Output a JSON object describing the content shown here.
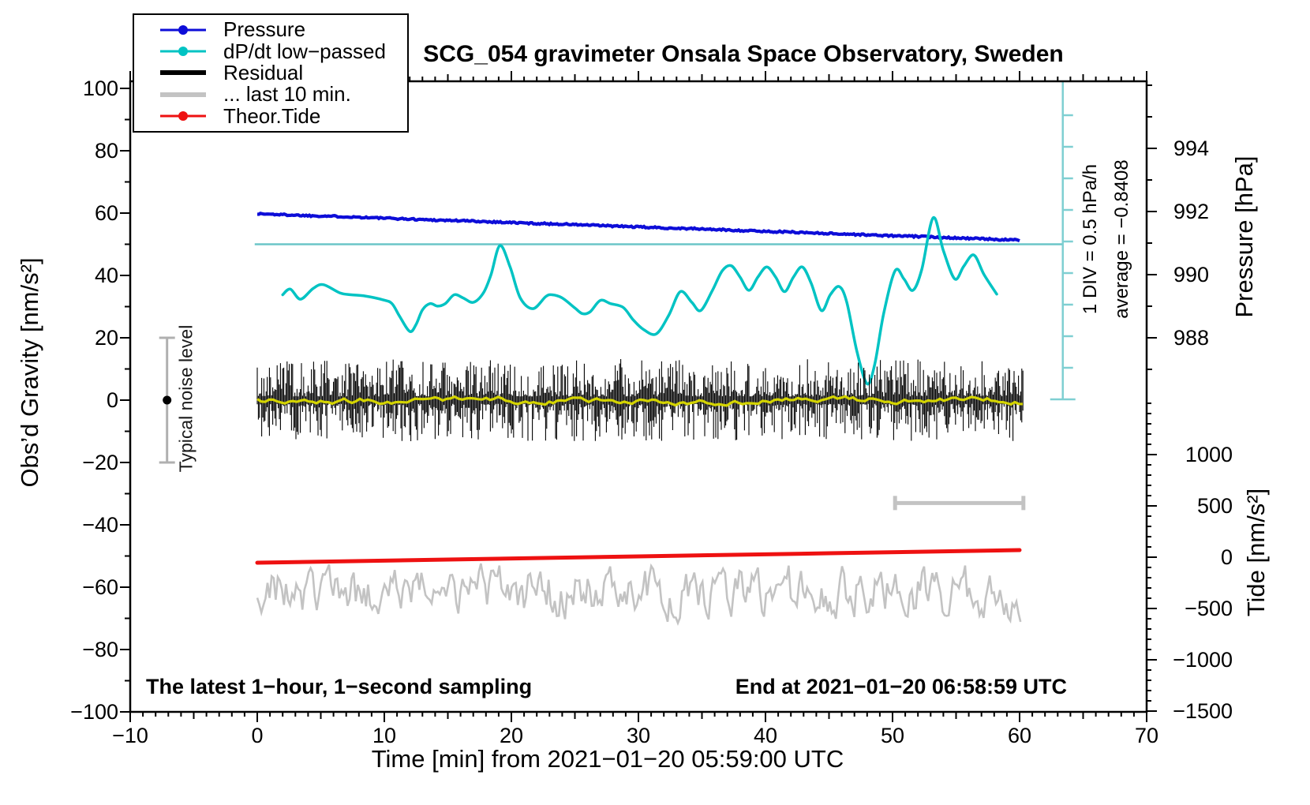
{
  "title": "SCG_054 gravimeter Onsala Space Observatory, Sweden",
  "legend": {
    "items": [
      {
        "label": "Pressure",
        "color": "#0d0dd8",
        "style": "line-dot"
      },
      {
        "label": "dP/dt low−passed",
        "color": "#00c3c3",
        "style": "line-dot"
      },
      {
        "label": "Residual",
        "color": "#000000",
        "style": "thick-line"
      },
      {
        "label": "... last 10 min.",
        "color": "#c3c3c3",
        "style": "thick-line"
      },
      {
        "label": "Theor.Tide",
        "color": "#ee1111",
        "style": "line-dot"
      }
    ]
  },
  "chart_data": {
    "type": "line",
    "axes": {
      "x": {
        "label": "Time [min] from 2021−01−20 05:59:00 UTC",
        "range": [
          -10,
          70
        ],
        "major_step": 10,
        "medium_step": 5,
        "minor_step": 1,
        "tick_values": [
          -10,
          0,
          10,
          20,
          30,
          40,
          50,
          60,
          70
        ],
        "tick_labels": [
          "−10",
          "0",
          "10",
          "20",
          "30",
          "40",
          "50",
          "60",
          "70"
        ]
      },
      "y_gravity": {
        "label": "Obs’d Gravity [nm/s²]",
        "range": [
          -100,
          102
        ],
        "major_step": 20,
        "minor_step": 10,
        "tick_values": [
          100,
          80,
          60,
          40,
          20,
          0,
          -20,
          -40,
          -60,
          -80,
          -100
        ],
        "tick_labels": [
          "100",
          "80",
          "60",
          "40",
          "20",
          "0",
          "−20",
          "−40",
          "−60",
          "−80",
          "−100"
        ]
      },
      "y_pressure": {
        "label": "Pressure [hPa]",
        "tick_values": [
          994,
          992,
          990,
          988
        ],
        "tick_labels": [
          "994",
          "992",
          "990",
          "988"
        ],
        "minor_range": [
          987,
          996
        ],
        "minor_step": 1
      },
      "y_tide": {
        "label": "Tide [nm/s²]",
        "tick_values": [
          1000,
          500,
          0,
          -500,
          -1000,
          -1500
        ],
        "tick_labels": [
          "1000",
          "500",
          "0",
          "−500",
          "−1000",
          "−1500"
        ],
        "minor_range": [
          -1500,
          1500
        ],
        "minor_step": 100
      }
    },
    "series": {
      "pressure": {
        "name": "Pressure",
        "unit": "hPa",
        "color": "#0d0dd8",
        "axis": "pressure",
        "x": [
          0,
          2,
          4,
          6,
          8,
          10,
          12,
          14,
          16,
          18,
          20,
          22,
          24,
          26,
          28,
          30,
          32,
          34,
          36,
          38,
          40,
          42,
          44,
          46,
          48,
          50,
          52,
          54,
          56,
          58,
          60
        ],
        "y": [
          991.93,
          991.9,
          991.87,
          991.85,
          991.82,
          991.79,
          991.76,
          991.73,
          991.71,
          991.68,
          991.65,
          991.62,
          991.6,
          991.57,
          991.54,
          991.51,
          991.48,
          991.46,
          991.43,
          991.4,
          991.37,
          991.35,
          991.32,
          991.29,
          991.26,
          991.23,
          991.21,
          991.18,
          991.15,
          991.12,
          991.09
        ],
        "noise": 0.025
      },
      "dpdt": {
        "name": "dP/dt low−passed",
        "unit": "hPa/h",
        "color": "#00c3c3",
        "zero_at_gravity": 50,
        "gravity_units_per_hPa_h": 20.25,
        "x": [
          2,
          2.6,
          3.4,
          4.4,
          5.2,
          6.5,
          7.4,
          8.5,
          9.9,
          10.6,
          11.2,
          12,
          12.5,
          13,
          13.6,
          14.2,
          14.8,
          15.5,
          16.2,
          17,
          17.8,
          18.4,
          19.1,
          19.9,
          20.7,
          21.7,
          22.7,
          23.2,
          24,
          25,
          25.6,
          26.2,
          27,
          27.8,
          28.8,
          29.6,
          30.4,
          31.4,
          32.4,
          33.3,
          34.2,
          34.9,
          35.8,
          36.6,
          37.3,
          38,
          38.7,
          39.4,
          40.1,
          40.8,
          41.5,
          42.2,
          42.9,
          43.6,
          44.4,
          45.1,
          45.8,
          46.4,
          47.2,
          48,
          48.6,
          49.3,
          50.2,
          50.9,
          51.6,
          52.3,
          53.2,
          54,
          54.9,
          55.6,
          56.4,
          57.2,
          58.2
        ],
        "y": [
          -0.8,
          -0.71,
          -0.87,
          -0.7,
          -0.64,
          -0.77,
          -0.8,
          -0.82,
          -0.88,
          -0.94,
          -1.14,
          -1.38,
          -1.27,
          -1.04,
          -0.94,
          -0.98,
          -0.94,
          -0.8,
          -0.85,
          -0.92,
          -0.77,
          -0.48,
          -0.02,
          -0.36,
          -0.85,
          -1.02,
          -0.83,
          -0.8,
          -0.85,
          -1.01,
          -1.1,
          -1.07,
          -0.89,
          -0.94,
          -1.0,
          -1.2,
          -1.35,
          -1.42,
          -1.12,
          -0.75,
          -0.92,
          -1.05,
          -0.74,
          -0.42,
          -0.34,
          -0.52,
          -0.73,
          -0.52,
          -0.36,
          -0.52,
          -0.75,
          -0.52,
          -0.36,
          -0.62,
          -1.05,
          -0.8,
          -0.67,
          -0.92,
          -1.7,
          -2.21,
          -1.9,
          -1.1,
          -0.42,
          -0.55,
          -0.73,
          -0.4,
          0.42,
          -0.1,
          -0.55,
          -0.35,
          -0.17,
          -0.48,
          -0.79
        ]
      },
      "residual": {
        "name": "Residual",
        "unit": "nm/s²",
        "color": "#000000",
        "axis": "gravity",
        "t_range": [
          0,
          60.3
        ],
        "mean": 0,
        "spike_amplitude": 13,
        "smoothed_color": "#d4d400",
        "smoothed_amplitude": 1.5
      },
      "residual_last10": {
        "name": "... last 10 min.",
        "unit": "nm/s²",
        "color": "#c3c3c3",
        "axis": "gravity",
        "t_range": [
          0,
          60.2
        ],
        "mean": -61.5,
        "amplitude": 7,
        "clamp": [
          -71.5,
          -50.8
        ]
      },
      "tide": {
        "name": "Theor.Tide",
        "unit": "nm/s²",
        "color": "#ee1111",
        "axis": "tide",
        "x": [
          0,
          15,
          30,
          45,
          60
        ],
        "y": [
          -54,
          -23,
          8,
          38,
          69
        ]
      }
    },
    "annotations": {
      "reference_line": {
        "gravity": 50,
        "t_start": -0.2,
        "t_end": 63.4,
        "color": "#6cc5c8"
      },
      "div_scale": {
        "line1": "1 DIV = 0.5 hPa/h",
        "line2": "average = −0.8408",
        "t": 63.4,
        "divisions": 10,
        "hPa_per_h_per_div": 0.5,
        "color": "#7fcfd2"
      },
      "noise_bar": {
        "label": "Typical noise level",
        "t": -7.1,
        "g_min": -20,
        "g_max": 20,
        "dot_g": 0,
        "color": "#b0b0b0"
      },
      "last10_span": {
        "t_start": 50.2,
        "t_end": 60.3,
        "g": -33,
        "color": "#c3c3c3"
      },
      "bottom_left": "The latest 1−hour, 1−second sampling",
      "bottom_right": "End at 2021−01−20 06:58:59 UTC"
    }
  }
}
